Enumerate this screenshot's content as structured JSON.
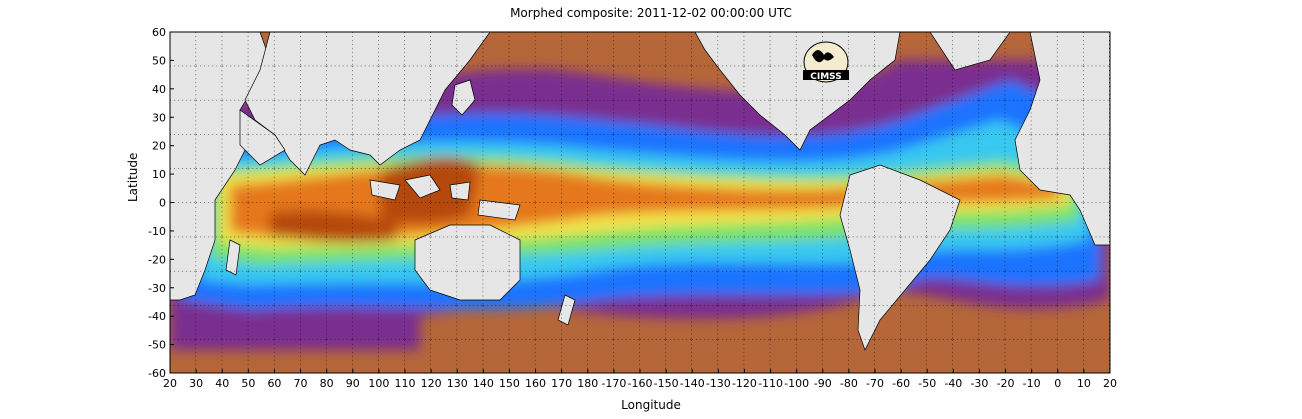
{
  "title": "Morphed composite: 2011-12-02 00:00:00 UTC",
  "xlabel": "Longitude",
  "ylabel": "Latitude",
  "logo_text": "CIMSS",
  "x_ticks": [
    "20",
    "30",
    "40",
    "50",
    "60",
    "70",
    "80",
    "90",
    "100",
    "110",
    "120",
    "130",
    "140",
    "150",
    "160",
    "170",
    "180",
    "-170",
    "-160",
    "-150",
    "-140",
    "-130",
    "-120",
    "-110",
    "-100",
    "-90",
    "-80",
    "-70",
    "-60",
    "-50",
    "-40",
    "-30",
    "-20",
    "-10",
    "0",
    "10",
    "20"
  ],
  "y_ticks": [
    "60",
    "50",
    "40",
    "30",
    "20",
    "10",
    "0",
    "-10",
    "-20",
    "-30",
    "-40",
    "-50",
    "-60"
  ],
  "colors": {
    "land": "#e6e6e6",
    "ocean_dry": "#b5673a",
    "violet": "#7a2f8f",
    "blue": "#1e73ff",
    "cyan": "#38c8f0",
    "green": "#7be26a",
    "yellow": "#f4e34a",
    "orange": "#e5781a",
    "dark_orange": "#b54a0f"
  }
}
